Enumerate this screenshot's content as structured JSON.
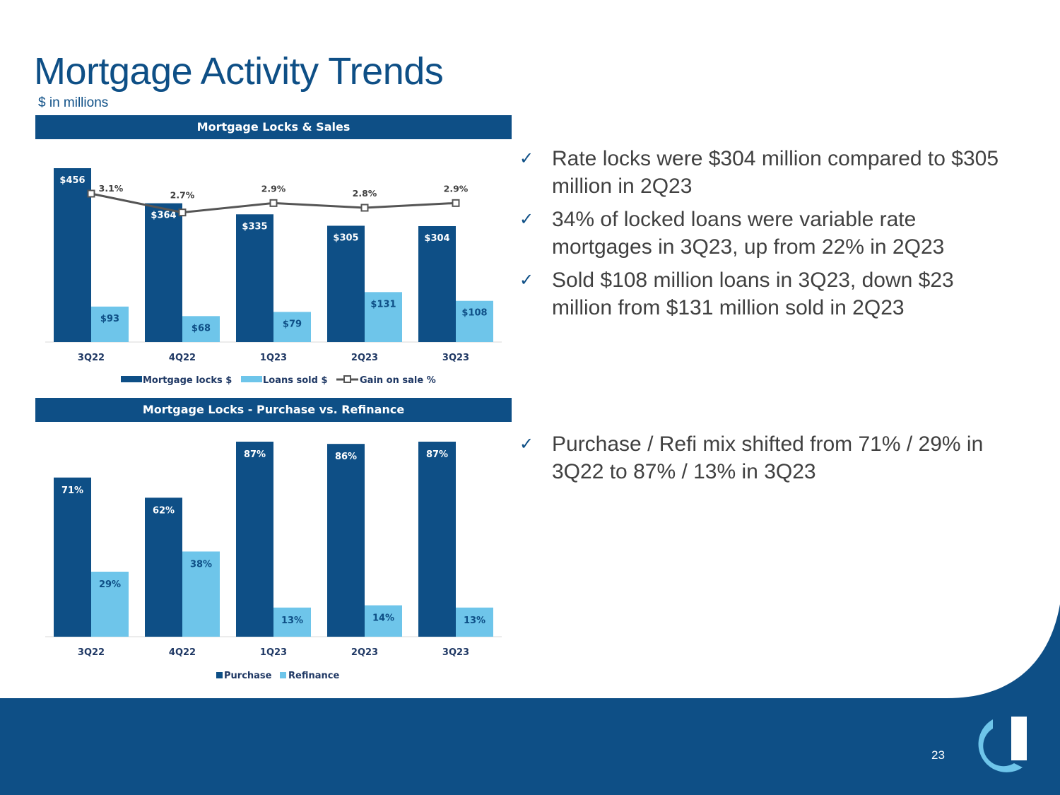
{
  "title": "Mortgage Activity Trends",
  "subtitle": "$ in millions",
  "colors": {
    "dark_blue": "#0e4f86",
    "light_blue": "#6ec5ea",
    "line_gray": "#555555"
  },
  "page_number": "23",
  "logo_icon": "c-mark-logo-icon",
  "bullets_top": [
    {
      "icon": "check-icon",
      "text": "Rate locks were $304 million compared to $305 million in 2Q23"
    },
    {
      "icon": "check-icon",
      "text": "34% of locked loans were variable rate mortgages in 3Q23, up from 22% in 2Q23"
    },
    {
      "icon": "check-icon",
      "text": "Sold $108 million loans in 3Q23, down $23 million from $131 million sold in 2Q23"
    }
  ],
  "bullets_bottom": [
    {
      "icon": "check-icon",
      "text": "Purchase / Refi mix shifted from 71% / 29% in 3Q22 to 87% / 13% in 3Q23"
    }
  ],
  "chart_data": [
    {
      "type": "bar",
      "title": "Mortgage Locks & Sales",
      "categories": [
        "3Q22",
        "4Q22",
        "1Q23",
        "2Q23",
        "3Q23"
      ],
      "series": [
        {
          "name": "Mortgage locks $",
          "kind": "bar",
          "values": [
            456,
            364,
            335,
            305,
            304
          ],
          "labels": [
            "$456",
            "$364",
            "$335",
            "$305",
            "$304"
          ]
        },
        {
          "name": "Loans sold $",
          "kind": "bar",
          "values": [
            93,
            68,
            79,
            131,
            108
          ],
          "labels": [
            "$93",
            "$68",
            "$79",
            "$131",
            "$108"
          ]
        },
        {
          "name": "Gain on sale %",
          "kind": "line",
          "values": [
            3.1,
            2.7,
            2.9,
            2.8,
            2.9
          ],
          "labels": [
            "3.1%",
            "2.7%",
            "2.9%",
            "2.8%",
            "2.9%"
          ]
        }
      ],
      "ylim": [
        0,
        456
      ],
      "legend": "bottom"
    },
    {
      "type": "bar",
      "title": "Mortgage Locks - Purchase vs. Refinance",
      "categories": [
        "3Q22",
        "4Q22",
        "1Q23",
        "2Q23",
        "3Q23"
      ],
      "series": [
        {
          "name": "Purchase",
          "values": [
            71,
            62,
            87,
            86,
            87
          ],
          "labels": [
            "71%",
            "62%",
            "87%",
            "86%",
            "87%"
          ]
        },
        {
          "name": "Refinance",
          "values": [
            29,
            38,
            13,
            14,
            13
          ],
          "labels": [
            "29%",
            "38%",
            "13%",
            "14%",
            "13%"
          ]
        }
      ],
      "ylim": [
        0,
        87
      ],
      "legend": "bottom"
    }
  ]
}
